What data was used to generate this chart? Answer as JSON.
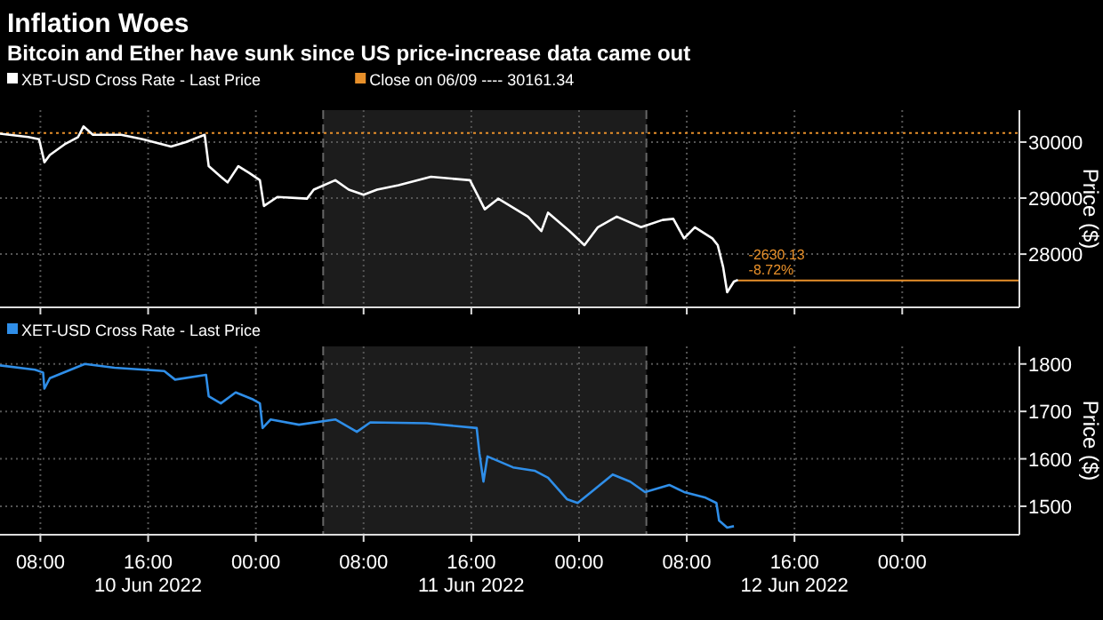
{
  "chart_data": [
    {
      "type": "line",
      "title": "Inflation Woes",
      "subtitle": "Bitcoin and Ether have sunk since US price-increase data came out",
      "ylabel": "Price ($)",
      "legend": "top left",
      "grid": true,
      "tick_labels": "y",
      "xlim": [
        "2022-06-10T05:00",
        "2022-06-13T08:42"
      ],
      "ylim": [
        27050,
        30570
      ],
      "yticks": [
        28000,
        29000,
        30000
      ],
      "xticks": [
        {
          "value": "2022-06-10T08:00",
          "label": null
        },
        {
          "value": "2022-06-10T16:00",
          "label": null
        },
        {
          "value": "2022-06-11T00:00",
          "label": null
        },
        {
          "value": "2022-06-11T08:00",
          "label": null
        },
        {
          "value": "2022-06-11T16:00",
          "label": null
        },
        {
          "value": "2022-06-12T00:00",
          "label": null
        },
        {
          "value": "2022-06-12T08:00",
          "label": null
        },
        {
          "value": "2022-06-12T16:00",
          "label": null
        },
        {
          "value": "2022-06-13T00:00",
          "label": null
        }
      ],
      "bands": [
        {
          "axis": "x",
          "from": "2022-06-11T05:00",
          "to": "2022-06-12T05:00",
          "color": "#1c1c1c"
        }
      ],
      "ref_lines": [
        {
          "axis": "y",
          "value": 30161.34,
          "label": "Close on 06/09 ---- 30161.34",
          "color": "#e8902a",
          "line_style": "dotted"
        },
        {
          "axis": "y",
          "value": 27531.21,
          "color": "#e8902a",
          "line_style": "solid"
        },
        {
          "axis": "x",
          "value": "2022-06-11T05:00",
          "color": "#666666",
          "line_style": "dashed"
        },
        {
          "axis": "x",
          "value": "2022-06-12T05:00",
          "color": "#666666",
          "line_style": "dashed"
        }
      ],
      "annotations": [
        {
          "text": "-2630.13\n-8.72%",
          "x": "2022-06-12T11:48",
          "y": 27531.21
        }
      ],
      "series": [
        {
          "name": "XBT-USD Cross Rate - Last Price",
          "color": "#ffffff",
          "x": [
            "2022-06-10T05:00",
            "2022-06-10T07:06",
            "2022-06-10T07:54",
            "2022-06-10T08:18",
            "2022-06-10T08:42",
            "2022-06-10T09:48",
            "2022-06-10T10:48",
            "2022-06-10T11:12",
            "2022-06-10T11:54",
            "2022-06-10T14:00",
            "2022-06-10T15:36",
            "2022-06-10T17:42",
            "2022-06-10T18:48",
            "2022-06-10T20:12",
            "2022-06-10T20:30",
            "2022-06-10T21:24",
            "2022-06-10T21:54",
            "2022-06-10T22:42",
            "2022-06-10T23:30",
            "2022-06-11T00:18",
            "2022-06-11T00:36",
            "2022-06-11T01:36",
            "2022-06-11T03:48",
            "2022-06-11T04:18",
            "2022-06-11T05:54",
            "2022-06-11T06:54",
            "2022-06-11T08:00",
            "2022-06-11T09:00",
            "2022-06-11T10:36",
            "2022-06-11T13:00",
            "2022-06-11T15:54",
            "2022-06-11T17:00",
            "2022-06-11T18:00",
            "2022-06-11T20:12",
            "2022-06-11T21:12",
            "2022-06-11T21:42",
            "2022-06-11T23:18",
            "2022-06-12T00:24",
            "2022-06-12T01:24",
            "2022-06-12T02:48",
            "2022-06-12T04:36",
            "2022-06-12T06:12",
            "2022-06-12T07:00",
            "2022-06-12T07:48",
            "2022-06-12T08:36",
            "2022-06-12T09:54",
            "2022-06-12T10:18",
            "2022-06-12T10:42",
            "2022-06-12T11:00",
            "2022-06-12T11:30",
            "2022-06-12T11:48"
          ],
          "values": [
            30150,
            30090,
            30050,
            29640,
            29770,
            29960,
            30090,
            30280,
            30130,
            30130,
            30050,
            29920,
            30000,
            30130,
            29570,
            29380,
            29280,
            29570,
            29450,
            29320,
            28860,
            29020,
            28990,
            29150,
            29320,
            29150,
            29060,
            29150,
            29230,
            29380,
            29320,
            28800,
            28990,
            28670,
            28410,
            28740,
            28410,
            28160,
            28480,
            28670,
            28480,
            28610,
            28630,
            28280,
            28480,
            28280,
            28160,
            27770,
            27320,
            27510,
            27540
          ]
        }
      ]
    },
    {
      "type": "line",
      "ylabel": "Price ($)",
      "legend": "top left",
      "grid": true,
      "xlim": [
        "2022-06-10T05:00",
        "2022-06-13T08:42"
      ],
      "ylim": [
        1440,
        1837
      ],
      "yticks": [
        1500,
        1600,
        1700,
        1800
      ],
      "xticks": [
        {
          "value": "2022-06-10T08:00",
          "label": "08:00"
        },
        {
          "value": "2022-06-10T16:00",
          "label": "16:00\n10 Jun 2022"
        },
        {
          "value": "2022-06-11T00:00",
          "label": "00:00"
        },
        {
          "value": "2022-06-11T08:00",
          "label": "08:00"
        },
        {
          "value": "2022-06-11T16:00",
          "label": "16:00\n11 Jun 2022"
        },
        {
          "value": "2022-06-12T00:00",
          "label": "00:00"
        },
        {
          "value": "2022-06-12T08:00",
          "label": "08:00"
        },
        {
          "value": "2022-06-12T16:00",
          "label": "16:00\n12 Jun 2022"
        },
        {
          "value": "2022-06-13T00:00",
          "label": "00:00"
        }
      ],
      "bands": [
        {
          "axis": "x",
          "from": "2022-06-11T05:00",
          "to": "2022-06-12T05:00",
          "color": "#1c1c1c"
        }
      ],
      "ref_lines": [
        {
          "axis": "x",
          "value": "2022-06-11T05:00",
          "color": "#666666",
          "line_style": "dashed"
        },
        {
          "axis": "x",
          "value": "2022-06-12T05:00",
          "color": "#666666",
          "line_style": "dashed"
        }
      ],
      "series": [
        {
          "name": "XET-USD Cross Rate - Last Price",
          "color": "#2f8ee8",
          "x": [
            "2022-06-10T05:00",
            "2022-06-10T07:36",
            "2022-06-10T08:12",
            "2022-06-10T08:18",
            "2022-06-10T08:42",
            "2022-06-10T11:18",
            "2022-06-10T13:30",
            "2022-06-10T17:12",
            "2022-06-10T18:00",
            "2022-06-10T20:18",
            "2022-06-10T20:30",
            "2022-06-10T21:24",
            "2022-06-10T22:30",
            "2022-06-10T23:48",
            "2022-06-11T00:18",
            "2022-06-11T00:30",
            "2022-06-11T01:06",
            "2022-06-11T03:12",
            "2022-06-11T05:54",
            "2022-06-11T07:30",
            "2022-06-11T08:30",
            "2022-06-11T12:42",
            "2022-06-11T16:24",
            "2022-06-11T16:36",
            "2022-06-11T16:54",
            "2022-06-11T17:12",
            "2022-06-11T19:06",
            "2022-06-11T20:42",
            "2022-06-11T21:42",
            "2022-06-11T23:06",
            "2022-06-11T23:54",
            "2022-06-12T00:54",
            "2022-06-12T02:30",
            "2022-06-12T03:48",
            "2022-06-12T04:54",
            "2022-06-12T06:42",
            "2022-06-12T07:48",
            "2022-06-12T09:24",
            "2022-06-12T10:12",
            "2022-06-12T10:24",
            "2022-06-12T11:00",
            "2022-06-12T11:30"
          ],
          "values": [
            1797,
            1788,
            1782,
            1748,
            1770,
            1800,
            1792,
            1785,
            1767,
            1777,
            1732,
            1717,
            1740,
            1725,
            1717,
            1665,
            1683,
            1672,
            1683,
            1657,
            1677,
            1675,
            1665,
            1612,
            1552,
            1605,
            1582,
            1575,
            1560,
            1515,
            1507,
            1530,
            1567,
            1552,
            1530,
            1545,
            1530,
            1518,
            1507,
            1470,
            1455,
            1458
          ]
        }
      ]
    }
  ]
}
